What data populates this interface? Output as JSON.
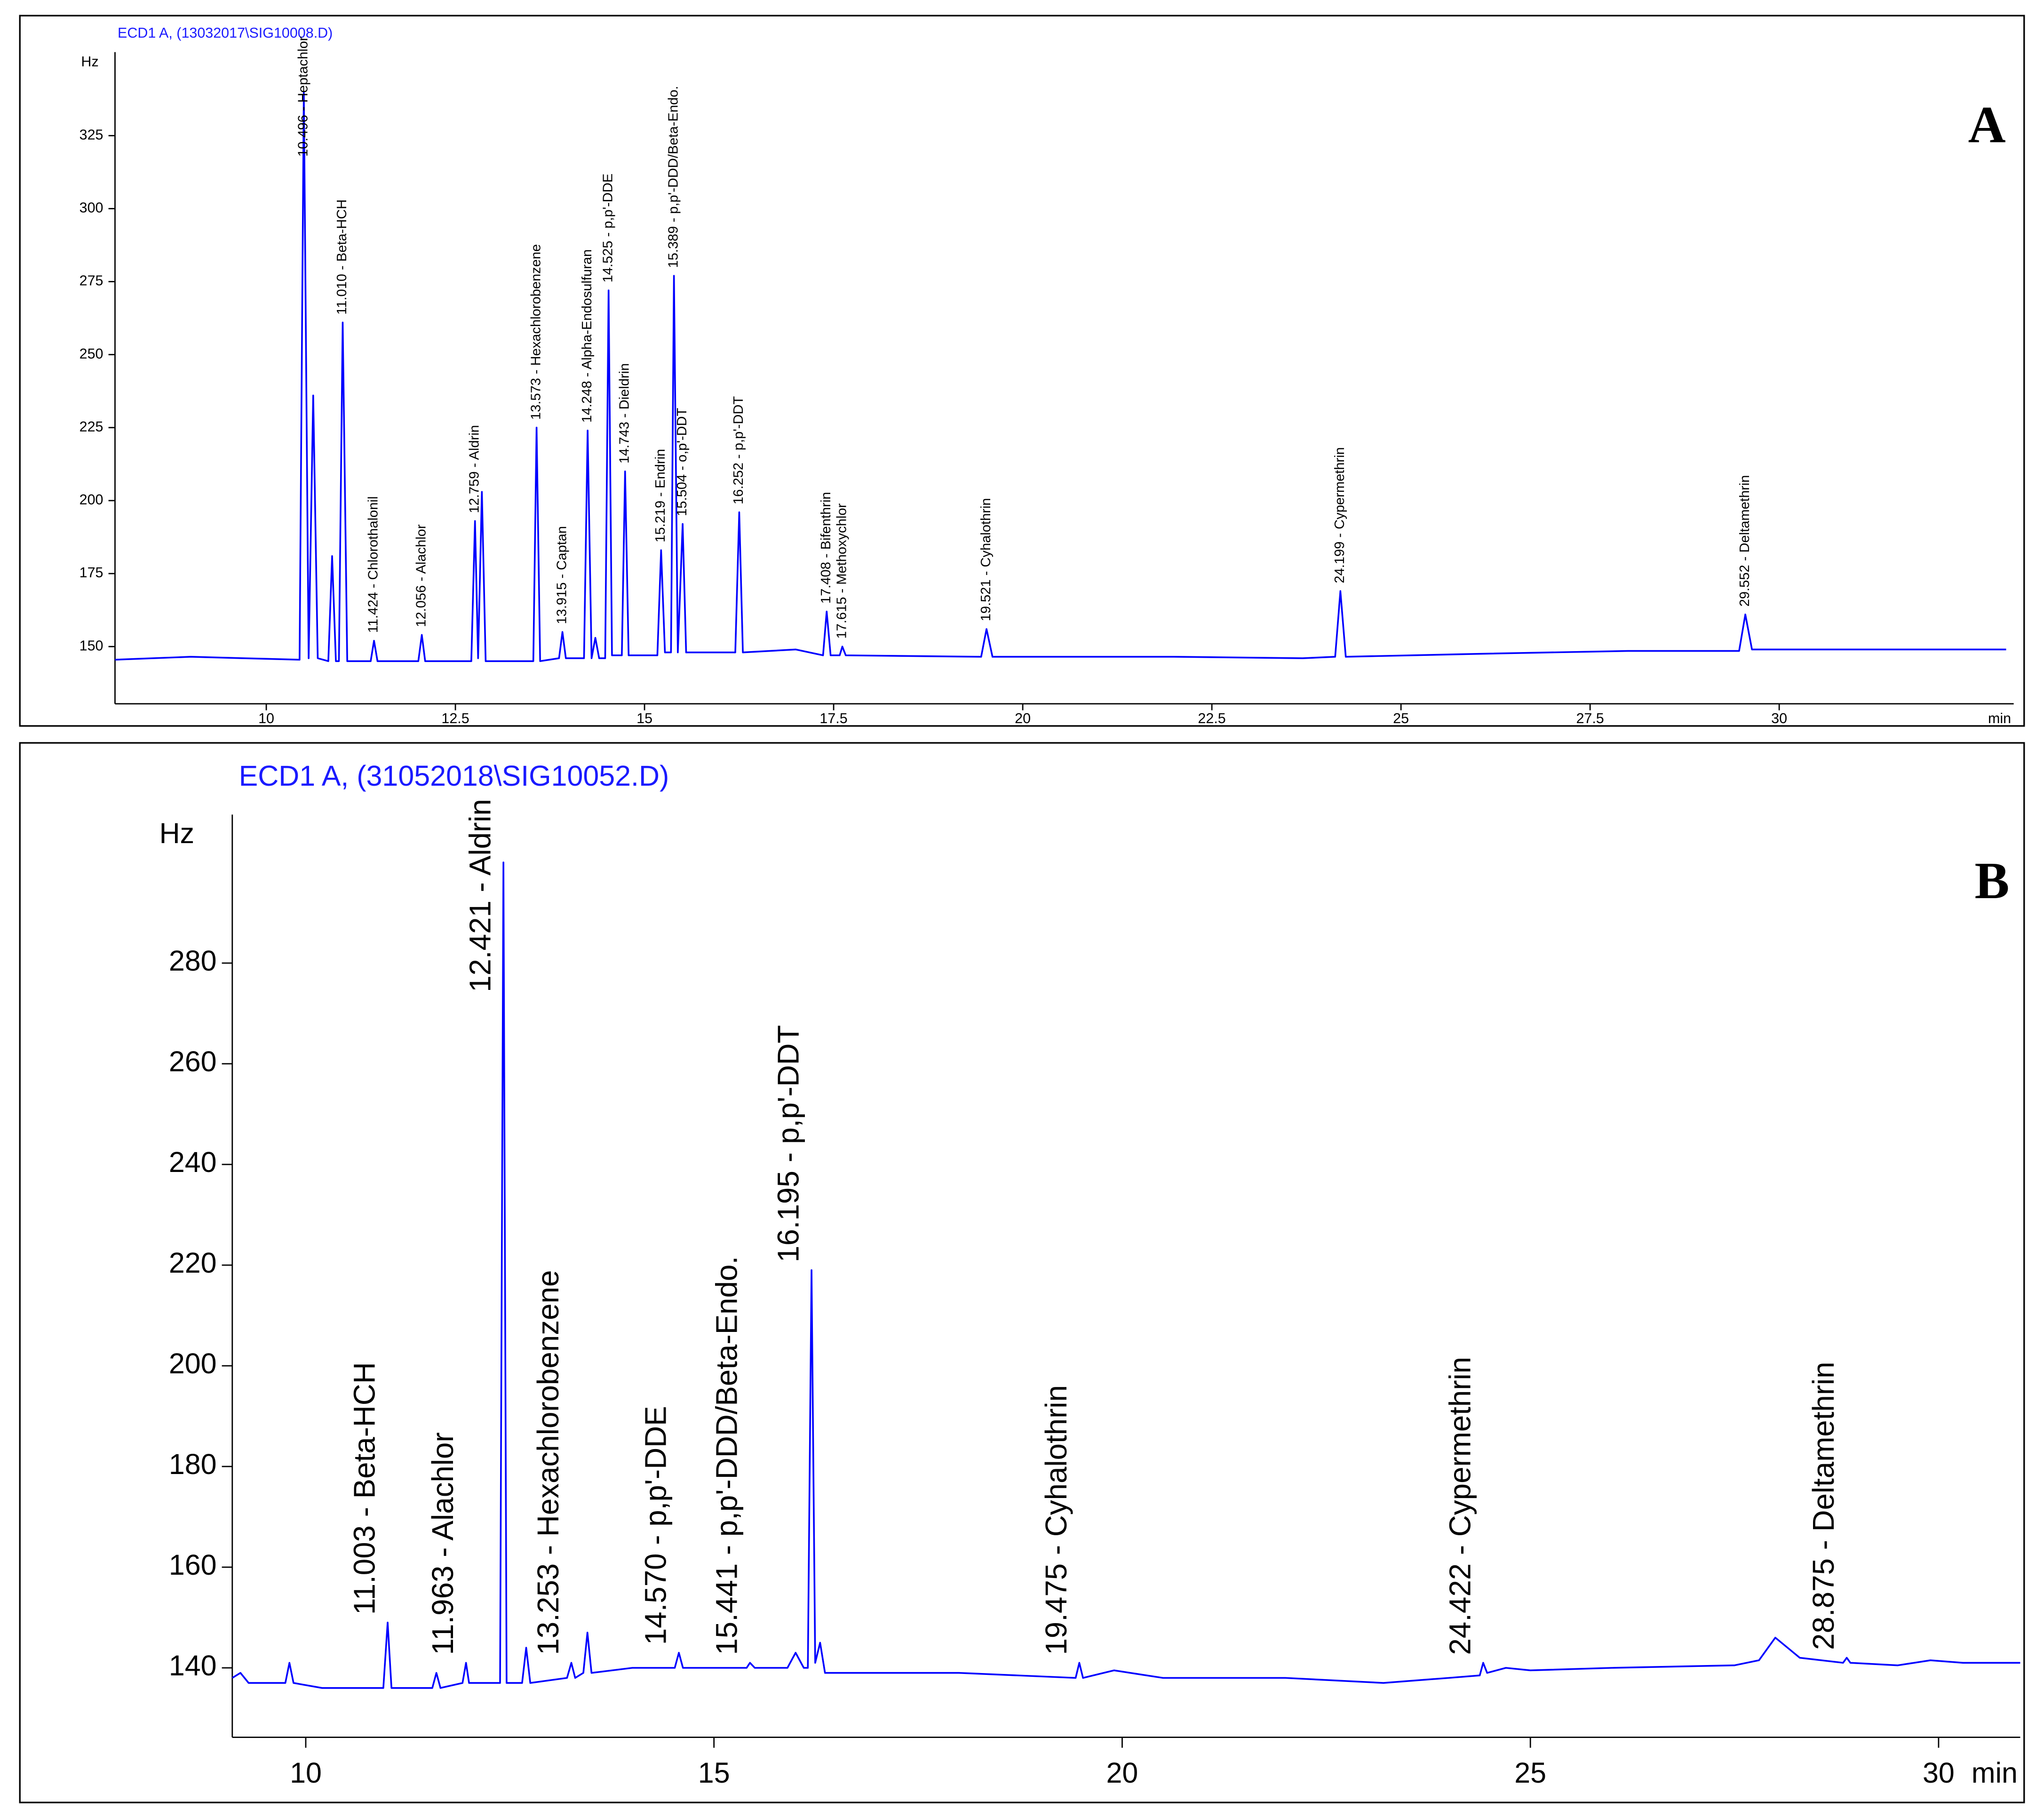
{
  "chart_data": [
    {
      "type": "line",
      "title": "ECD1 A,  (13032017\\SIG10008.D)",
      "panel": "A",
      "ylabel": "Hz",
      "xlabel": "min",
      "color": "#0000ff",
      "xlim": [
        8,
        33.1
      ],
      "ylim": [
        130.4,
        353.6
      ],
      "xticks": [
        10,
        12.5,
        15,
        17.5,
        20,
        22.5,
        25,
        27.5,
        30
      ],
      "yticks": [
        150,
        175,
        200,
        225,
        250,
        275,
        300,
        325
      ],
      "x": [
        8.0,
        9.0,
        9.7,
        10.0,
        10.44,
        10.496,
        10.56,
        10.62,
        10.68,
        10.82,
        10.87,
        10.92,
        10.96,
        11.01,
        11.07,
        11.38,
        11.424,
        11.47,
        12.01,
        12.056,
        12.1,
        12.71,
        12.759,
        12.8,
        12.85,
        12.9,
        13.53,
        13.573,
        13.62,
        13.87,
        13.915,
        13.96,
        14.2,
        14.248,
        14.3,
        14.35,
        14.4,
        14.48,
        14.525,
        14.57,
        14.7,
        14.743,
        14.79,
        15.17,
        15.219,
        15.27,
        15.35,
        15.389,
        15.44,
        15.504,
        15.55,
        16.2,
        16.252,
        16.3,
        17.0,
        17.36,
        17.408,
        17.46,
        17.58,
        17.615,
        17.66,
        19.45,
        19.521,
        19.6,
        22.0,
        23.7,
        24.13,
        24.199,
        24.27,
        26.0,
        28.0,
        29.47,
        29.552,
        29.64,
        31.0,
        33.0
      ],
      "values": [
        145.5,
        146.5,
        146,
        145.8,
        145.5,
        340,
        146,
        236,
        146,
        145,
        181,
        145,
        145,
        261,
        145,
        145,
        152,
        145,
        145,
        154,
        145,
        145,
        193,
        146,
        203,
        145,
        145,
        225,
        145,
        146,
        155,
        146,
        146,
        224,
        146,
        153,
        146,
        146,
        272,
        147,
        147,
        210,
        147,
        147,
        183,
        148,
        148,
        277,
        148,
        192,
        148,
        148,
        196,
        148,
        149,
        147,
        162,
        147,
        147,
        150,
        147,
        146.5,
        156,
        146.5,
        146.5,
        146,
        146.5,
        169,
        146.5,
        147.5,
        148.5,
        148.5,
        161,
        149,
        149,
        149
      ],
      "annotations": [
        {
          "text": "10.496 - Heptachlor",
          "x": 10.496
        },
        {
          "text": "11.010 - Beta-HCH",
          "x": 11.01
        },
        {
          "text": "11.424 - Chlorothalonil",
          "x": 11.424
        },
        {
          "text": "12.056 - Alachlor",
          "x": 12.056
        },
        {
          "text": "12.759 - Aldrin",
          "x": 12.759
        },
        {
          "text": "13.573 - Hexachlorobenzene",
          "x": 13.573
        },
        {
          "text": "13.915 - Captan",
          "x": 13.915
        },
        {
          "text": "14.248 - Alpha-Endosulfuran",
          "x": 14.248
        },
        {
          "text": "14.525 - p,p'-DDE",
          "x": 14.525
        },
        {
          "text": "14.743 - Dieldrin",
          "x": 14.743
        },
        {
          "text": "15.219 - Endrin",
          "x": 15.219
        },
        {
          "text": "15.389 - p,p'-DDD/Beta-Endo.",
          "x": 15.389
        },
        {
          "text": "15.504 - o,p'-DDT",
          "x": 15.504
        },
        {
          "text": "16.252 - p,p'-DDT",
          "x": 16.252
        },
        {
          "text": "17.408 - Bifenthrin",
          "x": 17.408
        },
        {
          "text": "17.615 - Methoxychlor",
          "x": 17.615
        },
        {
          "text": "19.521 - Cyhalothrin",
          "x": 19.521
        },
        {
          "text": "24.199 - Cypermethrin",
          "x": 24.199
        },
        {
          "text": "29.552 - Deltamethrin",
          "x": 29.552
        }
      ]
    },
    {
      "type": "line",
      "title": "ECD1 A,  (31052018\\SIG10052.D)",
      "panel": "B",
      "ylabel": "Hz",
      "xlabel": "min",
      "color": "#0000ff",
      "xlim": [
        9.1,
        31.0
      ],
      "ylim": [
        126.2,
        309.5
      ],
      "xticks": [
        10,
        15,
        20,
        25,
        30
      ],
      "yticks": [
        140,
        160,
        180,
        200,
        220,
        240,
        260,
        280
      ],
      "x": [
        9.1,
        9.2,
        9.3,
        9.75,
        9.8,
        9.85,
        10.2,
        10.95,
        11.003,
        11.05,
        11.55,
        11.6,
        11.65,
        11.92,
        11.963,
        12.0,
        12.38,
        12.421,
        12.46,
        12.65,
        12.7,
        12.75,
        13.2,
        13.253,
        13.3,
        13.4,
        13.45,
        13.5,
        14.0,
        14.52,
        14.57,
        14.62,
        15.4,
        15.441,
        15.5,
        15.9,
        16.0,
        16.1,
        16.15,
        16.195,
        16.24,
        16.3,
        16.36,
        17.0,
        18.0,
        19.43,
        19.475,
        19.52,
        19.9,
        20.5,
        22.0,
        23.2,
        24.0,
        24.38,
        24.422,
        24.47,
        24.7,
        25.0,
        26.0,
        27.5,
        27.8,
        28.0,
        28.3,
        28.83,
        28.875,
        28.92,
        29.5,
        29.9,
        30.3,
        31.0
      ],
      "values": [
        138,
        139,
        137,
        137,
        141,
        137,
        136,
        136,
        149,
        136,
        136,
        139,
        136,
        137,
        141,
        137,
        137,
        300,
        137,
        137,
        144,
        137,
        138,
        141,
        138,
        139,
        147,
        139,
        140,
        140,
        143,
        140,
        140,
        141,
        140,
        140,
        143,
        140,
        140,
        219,
        141,
        145,
        139,
        139,
        139,
        138,
        141,
        138,
        139.5,
        138,
        138,
        137,
        138,
        138.5,
        141,
        139,
        140,
        139.5,
        140,
        140.5,
        141.5,
        146,
        142,
        141,
        142,
        141,
        140.5,
        141.5,
        141,
        141
      ],
      "annotations": [
        {
          "text": "11.003 -  Beta-HCH",
          "x": 11.003
        },
        {
          "text": "11.963 -  Alachlor",
          "x": 11.963
        },
        {
          "text": "12.421 -  Aldrin",
          "x": 12.421
        },
        {
          "text": "13.253 -  Hexachlorobenzene",
          "x": 13.253
        },
        {
          "text": "14.570 -  p,p'-DDE",
          "x": 14.57
        },
        {
          "text": "15.441 -  p,p'-DDD/Beta-Endo.",
          "x": 15.441
        },
        {
          "text": "16.195 -  p,p'-DDT",
          "x": 16.195
        },
        {
          "text": "19.475 -  Cyhalothrin",
          "x": 19.475
        },
        {
          "text": "24.422 -  Cypermethrin",
          "x": 24.422
        },
        {
          "text": "28.875 -  Deltamethrin",
          "x": 28.875
        }
      ]
    }
  ]
}
